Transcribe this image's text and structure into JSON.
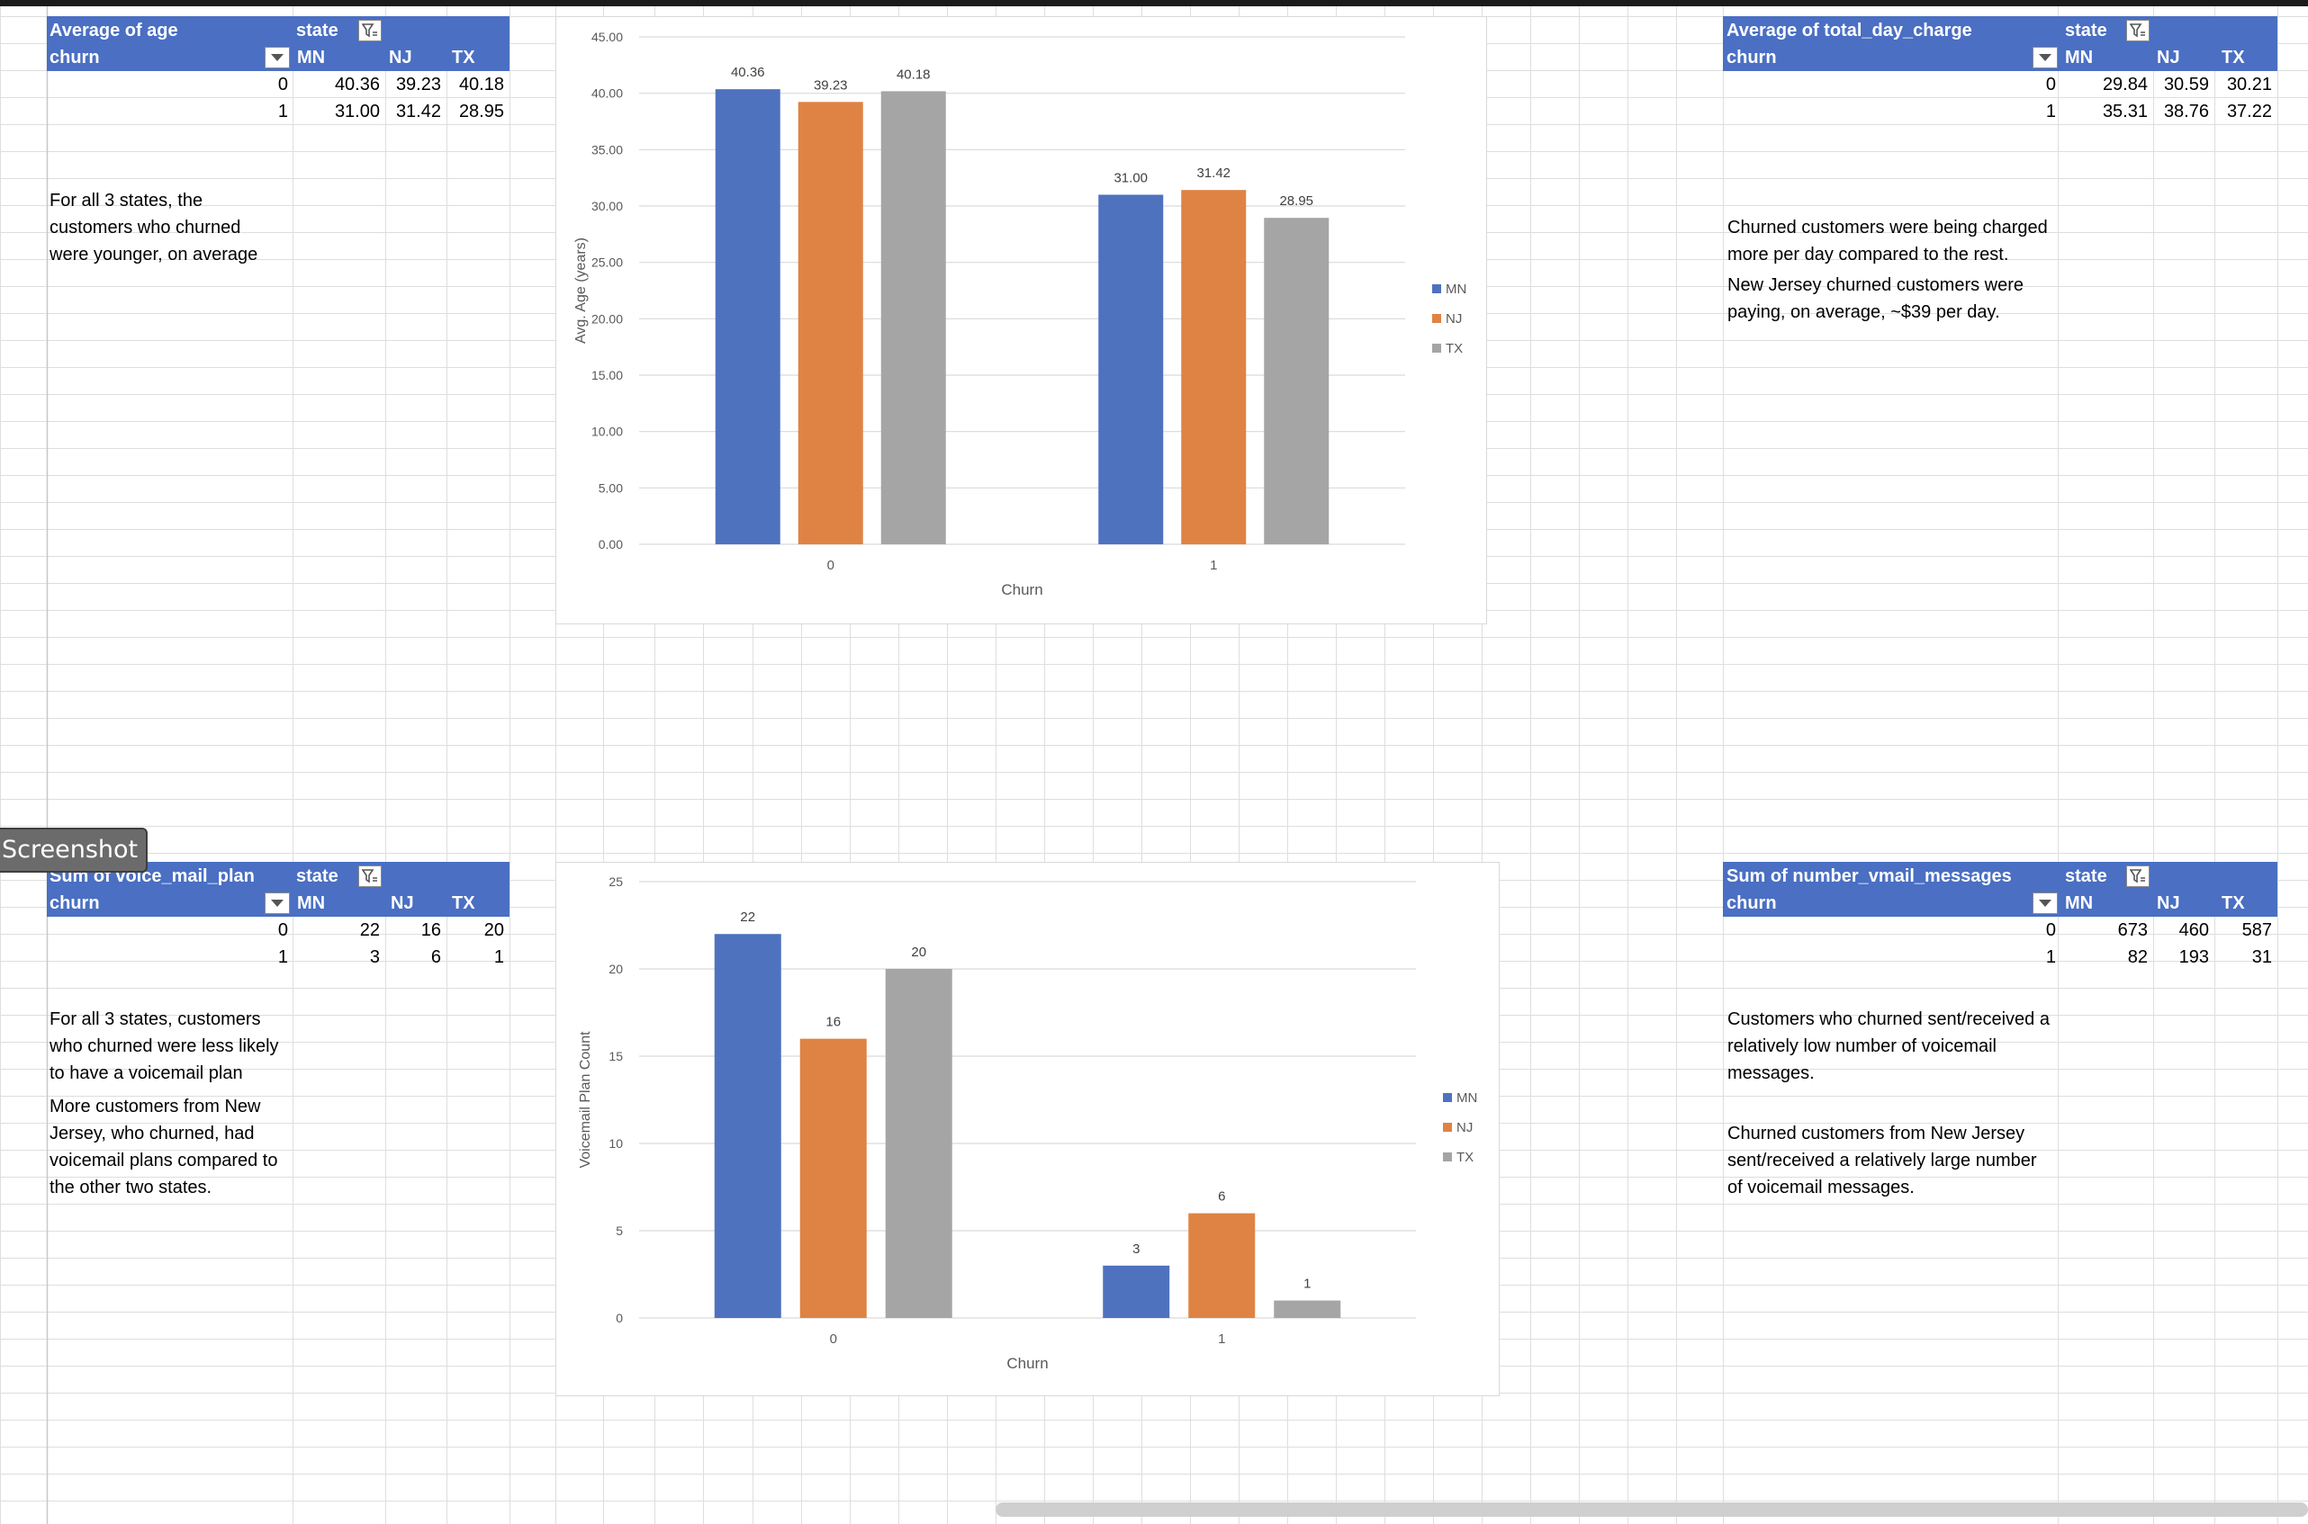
{
  "pivots": [
    {
      "title": "Average of age",
      "col_field": "state",
      "row_field": "churn",
      "columns": [
        "MN",
        "NJ",
        "TX"
      ],
      "rows": [
        {
          "key": "0",
          "values": [
            "40.36",
            "39.23",
            "40.18"
          ]
        },
        {
          "key": "1",
          "values": [
            "31.00",
            "31.42",
            "28.95"
          ]
        }
      ],
      "notes": [
        "For all 3 states, the",
        "customers who churned",
        "were younger, on average"
      ]
    },
    {
      "title": "Average of total_day_charge",
      "col_field": "state",
      "row_field": "churn",
      "columns": [
        "MN",
        "NJ",
        "TX"
      ],
      "rows": [
        {
          "key": "0",
          "values": [
            "29.84",
            "30.59",
            "30.21"
          ]
        },
        {
          "key": "1",
          "values": [
            "35.31",
            "38.76",
            "37.22"
          ]
        }
      ],
      "notes": [
        "Churned customers were being charged",
        "more per day compared to the rest.",
        "New Jersey churned customers were",
        "paying, on average, ~$39 per day."
      ]
    },
    {
      "title": "Sum of voice_mail_plan",
      "col_field": "state",
      "row_field": "churn",
      "columns": [
        "MN",
        "NJ",
        "TX"
      ],
      "rows": [
        {
          "key": "0",
          "values": [
            "22",
            "16",
            "20"
          ]
        },
        {
          "key": "1",
          "values": [
            "3",
            "6",
            "1"
          ]
        }
      ],
      "notes": [
        "For all 3 states, customers",
        "who churned were less likely",
        "to have a voicemail plan",
        "More customers from New",
        "Jersey, who churned, had",
        "voicemail plans compared to",
        "the other two states."
      ]
    },
    {
      "title": "Sum of number_vmail_messages",
      "col_field": "state",
      "row_field": "churn",
      "columns": [
        "MN",
        "NJ",
        "TX"
      ],
      "rows": [
        {
          "key": "0",
          "values": [
            "673",
            "460",
            "587"
          ]
        },
        {
          "key": "1",
          "values": [
            "82",
            "193",
            "31"
          ]
        }
      ],
      "notes": [
        "Customers who churned sent/received a",
        "relatively low number of voicemail",
        "messages.",
        "Churned customers from New Jersey",
        "sent/received a relatively large number",
        "of voicemail messages."
      ]
    }
  ],
  "chart_data": [
    {
      "type": "bar",
      "categories": [
        "0",
        "1"
      ],
      "series": [
        {
          "name": "MN",
          "values": [
            40.36,
            31.0
          ]
        },
        {
          "name": "NJ",
          "values": [
            39.23,
            31.42
          ]
        },
        {
          "name": "TX",
          "values": [
            40.18,
            28.95
          ]
        }
      ],
      "data_labels": [
        [
          "40.36",
          "31.00"
        ],
        [
          "39.23",
          "31.42"
        ],
        [
          "40.18",
          "28.95"
        ]
      ],
      "xlabel": "Churn",
      "ylabel": "Avg. Age (years)",
      "ylim": [
        0,
        45
      ],
      "yticks": [
        "0.00",
        "5.00",
        "10.00",
        "15.00",
        "20.00",
        "25.00",
        "30.00",
        "35.00",
        "40.00",
        "45.00"
      ],
      "grid": true,
      "legend": "right"
    },
    {
      "type": "bar",
      "categories": [
        "0",
        "1"
      ],
      "series": [
        {
          "name": "MN",
          "values": [
            22,
            3
          ]
        },
        {
          "name": "NJ",
          "values": [
            16,
            6
          ]
        },
        {
          "name": "TX",
          "values": [
            20,
            1
          ]
        }
      ],
      "data_labels": [
        [
          "22",
          "3"
        ],
        [
          "16",
          "6"
        ],
        [
          "20",
          "1"
        ]
      ],
      "xlabel": "Churn",
      "ylabel": "Voicemail Plan Count",
      "ylim": [
        0,
        25
      ],
      "yticks": [
        "0",
        "5",
        "10",
        "15",
        "20",
        "25"
      ],
      "grid": true,
      "legend": "right"
    }
  ],
  "colors": {
    "header": "#4a6fc3",
    "MN": "#4e72be",
    "NJ": "#df8344",
    "TX": "#a5a5a5",
    "gridline": "#d9d9d9"
  },
  "icons": {
    "filter": "filter-icon",
    "dropdown": "chevron-down-icon"
  },
  "tooltip": {
    "label": "Screenshot"
  }
}
